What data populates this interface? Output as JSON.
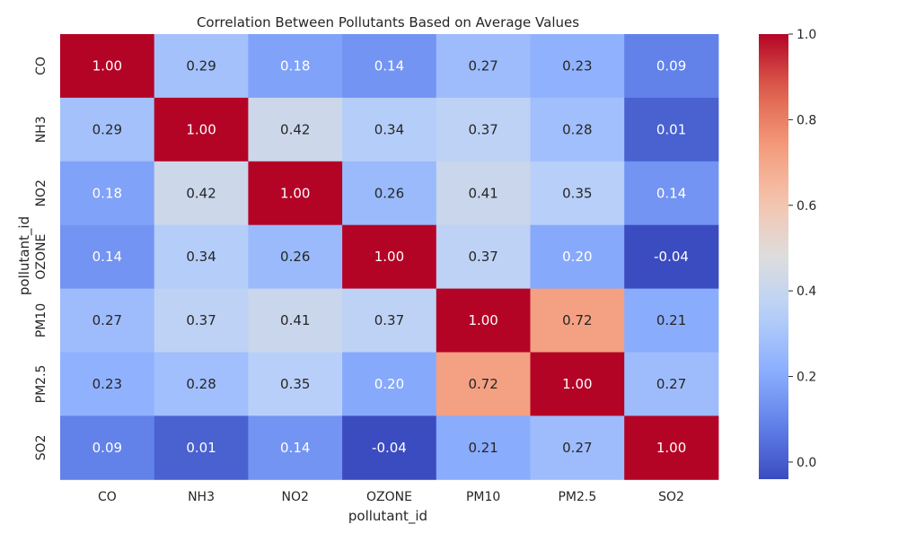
{
  "chart_data": {
    "type": "heatmap",
    "title": "Correlation Between Pollutants Based on Average Values",
    "xlabel": "pollutant_id",
    "ylabel": "pollutant_id",
    "x_categories": [
      "CO",
      "NH3",
      "NO2",
      "OZONE",
      "PM10",
      "PM2.5",
      "SO2"
    ],
    "y_categories": [
      "CO",
      "NH3",
      "NO2",
      "OZONE",
      "PM10",
      "PM2.5",
      "SO2"
    ],
    "values": [
      [
        1.0,
        0.29,
        0.18,
        0.14,
        0.27,
        0.23,
        0.09
      ],
      [
        0.29,
        1.0,
        0.42,
        0.34,
        0.37,
        0.28,
        0.01
      ],
      [
        0.18,
        0.42,
        1.0,
        0.26,
        0.41,
        0.35,
        0.14
      ],
      [
        0.14,
        0.34,
        0.26,
        1.0,
        0.37,
        0.2,
        -0.04
      ],
      [
        0.27,
        0.37,
        0.41,
        0.37,
        1.0,
        0.72,
        0.21
      ],
      [
        0.23,
        0.28,
        0.35,
        0.2,
        0.72,
        1.0,
        0.27
      ],
      [
        0.09,
        0.01,
        0.14,
        -0.04,
        0.21,
        0.27,
        1.0
      ]
    ],
    "value_format": "2 decimals",
    "colormap": "coolwarm",
    "color_range": [
      -0.04,
      1.0
    ],
    "colorbar_ticks": [
      0.0,
      0.2,
      0.4,
      0.6,
      0.8,
      1.0
    ],
    "colorbar_tick_labels": [
      "0.0",
      "0.2",
      "0.4",
      "0.6",
      "0.8",
      "1.0"
    ],
    "colorbar_position": "right",
    "grid": false
  },
  "colors": {
    "low": "#3b4cc0",
    "mid": "#dddddd",
    "high": "#b40426",
    "text_dark": "#262626",
    "text_light": "#ffffff"
  }
}
